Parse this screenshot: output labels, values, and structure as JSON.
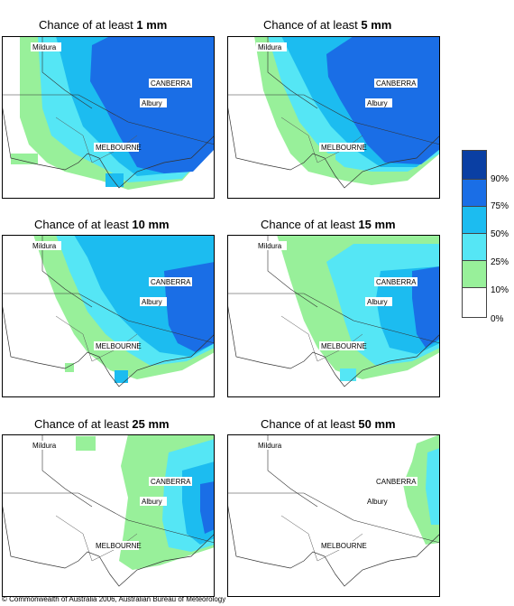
{
  "panels": [
    {
      "prefix": "Chance of at least ",
      "amount": "1 mm"
    },
    {
      "prefix": "Chance of at least ",
      "amount": "5 mm"
    },
    {
      "prefix": "Chance of at least ",
      "amount": "10 mm"
    },
    {
      "prefix": "Chance of at least ",
      "amount": "15 mm"
    },
    {
      "prefix": "Chance of at least ",
      "amount": "25 mm"
    },
    {
      "prefix": "Chance of at least ",
      "amount": "50 mm"
    }
  ],
  "cities": {
    "mildura": "Mildura",
    "canberra": "CANBERRA",
    "albury": "Albury",
    "melbourne": "MELBOURNE"
  },
  "legend": {
    "labels": [
      "90%",
      "75%",
      "50%",
      "25%",
      "10%",
      "0%"
    ],
    "colors": [
      "#0a3fa3",
      "#1a6ee6",
      "#1cbcf0",
      "#55e6f5",
      "#98f09a",
      "#ffffff"
    ]
  },
  "copyright": "© Commonwealth of Australia 2006, Australian Bureau of Meteorology"
}
